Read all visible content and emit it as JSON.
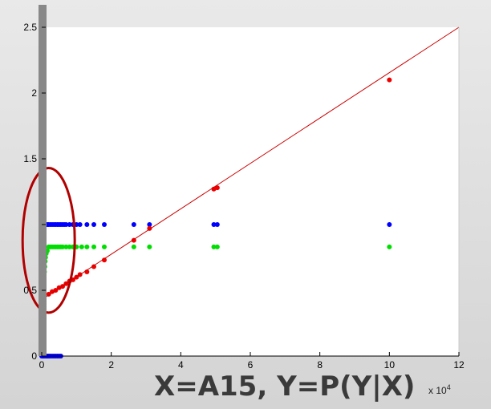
{
  "chart_data": {
    "type": "scatter",
    "title": "",
    "xlabel": "",
    "ylabel": "",
    "xlim": [
      0,
      12
    ],
    "ylim": [
      0,
      2.5
    ],
    "x_multiplier": {
      "base": "x 10",
      "exponent": "4"
    },
    "x_ticks": [
      0,
      2,
      4,
      6,
      8,
      10,
      12
    ],
    "x_tick_labels": [
      "0",
      "2",
      "4",
      "6",
      "8",
      "10",
      "12"
    ],
    "y_ticks": [
      0,
      0.5,
      1,
      1.5,
      2,
      2.5
    ],
    "y_tick_labels": [
      "0",
      "0.5",
      "",
      "1.5",
      "2",
      "2.5"
    ],
    "grid": false,
    "series": [
      {
        "color": "#0000ff",
        "points": [
          [
            0.02,
            1
          ],
          [
            0.05,
            1
          ],
          [
            0.08,
            1
          ],
          [
            0.1,
            1
          ],
          [
            0.13,
            1
          ],
          [
            0.16,
            1
          ],
          [
            0.2,
            1
          ],
          [
            0.25,
            1
          ],
          [
            0.3,
            1
          ],
          [
            0.35,
            1
          ],
          [
            0.4,
            1
          ],
          [
            0.45,
            1
          ],
          [
            0.5,
            1
          ],
          [
            0.55,
            1
          ],
          [
            0.6,
            1
          ],
          [
            0.65,
            1
          ],
          [
            0.7,
            1
          ],
          [
            0.8,
            1
          ],
          [
            0.9,
            1
          ],
          [
            1.0,
            1
          ],
          [
            1.1,
            1
          ],
          [
            1.3,
            1
          ],
          [
            1.5,
            1
          ],
          [
            1.8,
            1
          ],
          [
            2.65,
            1
          ],
          [
            3.1,
            1
          ],
          [
            4.95,
            1
          ],
          [
            5.05,
            1
          ],
          [
            10.0,
            1
          ],
          [
            0.0,
            0
          ],
          [
            0.03,
            0
          ],
          [
            0.06,
            0
          ],
          [
            0.09,
            0
          ],
          [
            0.12,
            0
          ],
          [
            0.15,
            0
          ],
          [
            0.18,
            0
          ],
          [
            0.21,
            0
          ],
          [
            0.25,
            0
          ],
          [
            0.3,
            0
          ],
          [
            0.35,
            0
          ],
          [
            0.4,
            0
          ],
          [
            0.45,
            0
          ],
          [
            0.5,
            0
          ],
          [
            0.55,
            0
          ]
        ]
      },
      {
        "color": "#00dd00",
        "points": [
          [
            0.02,
            0.38
          ],
          [
            0.03,
            0.42
          ],
          [
            0.04,
            0.47
          ],
          [
            0.05,
            0.52
          ],
          [
            0.06,
            0.56
          ],
          [
            0.07,
            0.6
          ],
          [
            0.08,
            0.64
          ],
          [
            0.09,
            0.68
          ],
          [
            0.1,
            0.72
          ],
          [
            0.11,
            0.75
          ],
          [
            0.13,
            0.78
          ],
          [
            0.16,
            0.8
          ],
          [
            0.2,
            0.83
          ],
          [
            0.25,
            0.83
          ],
          [
            0.3,
            0.83
          ],
          [
            0.35,
            0.83
          ],
          [
            0.4,
            0.83
          ],
          [
            0.45,
            0.83
          ],
          [
            0.5,
            0.83
          ],
          [
            0.55,
            0.83
          ],
          [
            0.6,
            0.83
          ],
          [
            0.7,
            0.83
          ],
          [
            0.8,
            0.83
          ],
          [
            0.9,
            0.83
          ],
          [
            1.0,
            0.83
          ],
          [
            1.15,
            0.83
          ],
          [
            1.3,
            0.83
          ],
          [
            1.5,
            0.83
          ],
          [
            1.8,
            0.83
          ],
          [
            2.65,
            0.83
          ],
          [
            3.1,
            0.83
          ],
          [
            4.95,
            0.83
          ],
          [
            5.05,
            0.83
          ],
          [
            10.0,
            0.83
          ]
        ]
      },
      {
        "color": "#ee0000",
        "points": [
          [
            0.2,
            0.47
          ],
          [
            0.3,
            0.49
          ],
          [
            0.4,
            0.5
          ],
          [
            0.5,
            0.52
          ],
          [
            0.6,
            0.53
          ],
          [
            0.7,
            0.55
          ],
          [
            0.8,
            0.57
          ],
          [
            0.9,
            0.58
          ],
          [
            1.0,
            0.6
          ],
          [
            1.1,
            0.62
          ],
          [
            1.3,
            0.64
          ],
          [
            1.5,
            0.68
          ],
          [
            1.8,
            0.73
          ],
          [
            2.65,
            0.88
          ],
          [
            3.1,
            0.97
          ],
          [
            4.95,
            1.27
          ],
          [
            5.05,
            1.28
          ],
          [
            10.0,
            2.1
          ]
        ]
      },
      {
        "color": "#cc0000",
        "type": "line",
        "points": [
          [
            0.12,
            0.45
          ],
          [
            12,
            2.5
          ]
        ]
      }
    ],
    "annotations": [
      {
        "type": "ellipse",
        "color": "#b00000",
        "center": [
          0.2,
          0.88
        ],
        "radii_data": [
          0.75,
          0.55
        ]
      }
    ]
  },
  "slide": {
    "caption": "X=A15, Y=P(Y|X)"
  }
}
